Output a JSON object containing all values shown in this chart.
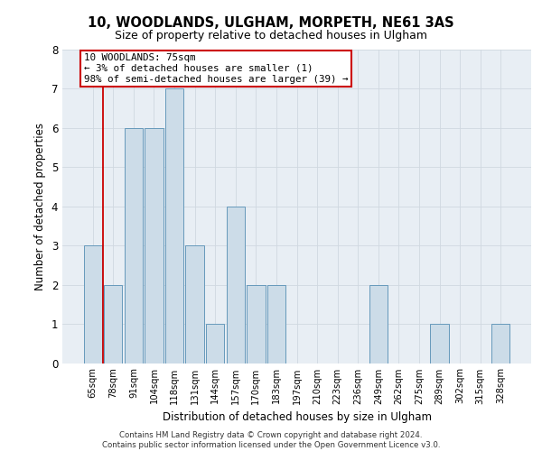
{
  "title1": "10, WOODLANDS, ULGHAM, MORPETH, NE61 3AS",
  "title2": "Size of property relative to detached houses in Ulgham",
  "xlabel": "Distribution of detached houses by size in Ulgham",
  "ylabel": "Number of detached properties",
  "categories": [
    "65sqm",
    "78sqm",
    "91sqm",
    "104sqm",
    "118sqm",
    "131sqm",
    "144sqm",
    "157sqm",
    "170sqm",
    "183sqm",
    "197sqm",
    "210sqm",
    "223sqm",
    "236sqm",
    "249sqm",
    "262sqm",
    "275sqm",
    "289sqm",
    "302sqm",
    "315sqm",
    "328sqm"
  ],
  "values": [
    3,
    2,
    6,
    6,
    7,
    3,
    1,
    4,
    2,
    2,
    0,
    0,
    0,
    0,
    2,
    0,
    0,
    1,
    0,
    0,
    1
  ],
  "bar_color": "#ccdce8",
  "bar_edge_color": "#6699bb",
  "grid_color": "#d0d8e0",
  "background_color": "#e8eef4",
  "annotation_text": "10 WOODLANDS: 75sqm\n← 3% of detached houses are smaller (1)\n98% of semi-detached houses are larger (39) →",
  "annotation_box_color": "#ffffff",
  "annotation_border_color": "#cc0000",
  "redline_x": 0.5,
  "footer_text": "Contains HM Land Registry data © Crown copyright and database right 2024.\nContains public sector information licensed under the Open Government Licence v3.0.",
  "ylim": [
    0,
    8
  ],
  "yticks": [
    0,
    1,
    2,
    3,
    4,
    5,
    6,
    7,
    8
  ]
}
